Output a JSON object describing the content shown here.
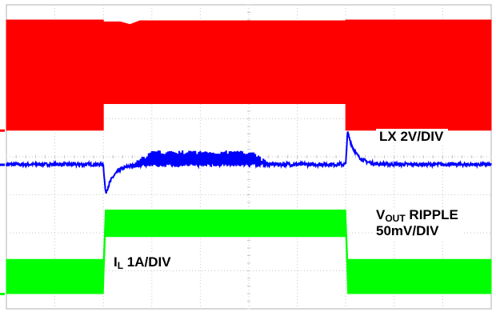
{
  "chart_data": {
    "type": "line",
    "title": "",
    "xlabel": "",
    "ylabel": "",
    "grid": true,
    "grid_divisions": {
      "horizontal": 10,
      "vertical": 8
    },
    "x_divisions_range": [
      0,
      10
    ],
    "events": {
      "load_step_up_div": 2.0,
      "load_step_down_div": 7.0
    },
    "series": [
      {
        "name": "LX",
        "label_prefix": "LX",
        "label_sub": "",
        "label_suffix": " 2V/DIV",
        "scale": "2V/DIV",
        "color": "#ff0000",
        "envelope": "switching",
        "high_level_div": 7.6,
        "low_light_load_div": 4.7,
        "low_heavy_load_div": 5.4
      },
      {
        "name": "VOUT RIPPLE",
        "label_prefix": "V",
        "label_sub": "OUT",
        "label_suffix": " RIPPLE",
        "label_line2": "50mV/DIV",
        "scale": "50mV/DIV",
        "color": "#0000ff",
        "baseline_div": 3.8,
        "undershoot_div": -1.0,
        "overshoot_div": 1.1
      },
      {
        "name": "IL",
        "label_prefix": "I",
        "label_sub": "L",
        "label_suffix": " 1A/DIV",
        "scale": "1A/DIV",
        "color": "#00ff00",
        "light_load_div": [
          0.4,
          1.3
        ],
        "heavy_load_div": [
          1.9,
          2.6
        ]
      }
    ]
  }
}
